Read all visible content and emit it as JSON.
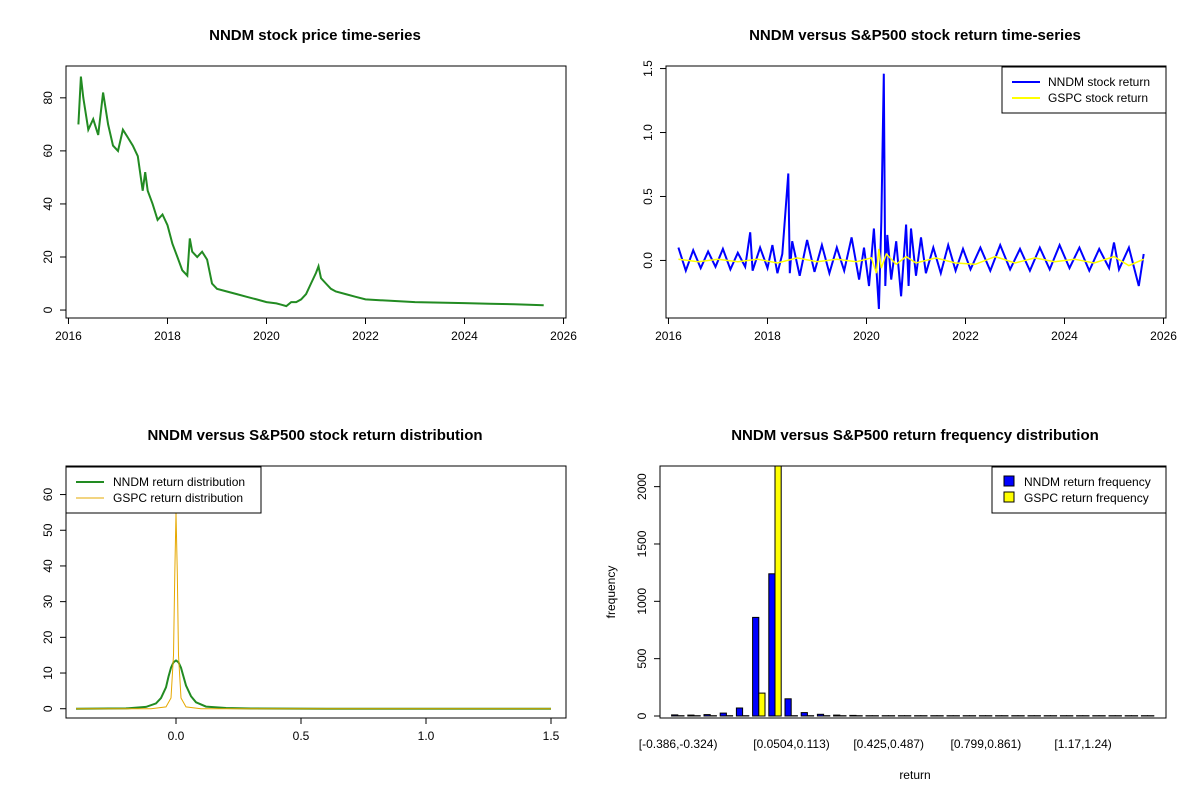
{
  "chart_data": [
    {
      "type": "line",
      "title": "NNDM stock price time-series",
      "xlabel": "",
      "ylabel": "",
      "xlim": [
        2016,
        2026
      ],
      "ylim": [
        0,
        90
      ],
      "xticks": [
        "2016",
        "2018",
        "2020",
        "2022",
        "2024",
        "2026"
      ],
      "yticks": [
        "0",
        "20",
        "40",
        "60",
        "80"
      ],
      "series": [
        {
          "name": "NNDM price",
          "color": "#228B22",
          "x": [
            2016.2,
            2016.25,
            2016.3,
            2016.4,
            2016.5,
            2016.6,
            2016.7,
            2016.8,
            2016.9,
            2017.0,
            2017.1,
            2017.2,
            2017.3,
            2017.4,
            2017.5,
            2017.55,
            2017.6,
            2017.7,
            2017.8,
            2017.9,
            2018.0,
            2018.1,
            2018.2,
            2018.3,
            2018.4,
            2018.45,
            2018.5,
            2018.6,
            2018.7,
            2018.8,
            2018.9,
            2019.0,
            2019.2,
            2019.4,
            2019.6,
            2019.8,
            2020.0,
            2020.2,
            2020.3,
            2020.4,
            2020.5,
            2020.6,
            2020.7,
            2020.8,
            2020.9,
            2021.0,
            2021.05,
            2021.1,
            2021.2,
            2021.3,
            2021.4,
            2021.6,
            2021.8,
            2022.0,
            2022.5,
            2023.0,
            2023.5,
            2024.0,
            2024.5,
            2025.0,
            2025.3,
            2025.6
          ],
          "y": [
            70,
            88,
            80,
            68,
            72,
            66,
            82,
            70,
            62,
            60,
            68,
            65,
            62,
            58,
            45,
            52,
            45,
            40,
            34,
            36,
            32,
            25,
            20,
            15,
            13,
            27,
            22,
            20,
            22,
            19,
            10,
            8,
            7,
            6,
            5,
            4,
            3,
            2.5,
            2,
            1.5,
            3,
            3,
            4,
            6,
            10,
            14,
            16.5,
            12,
            10,
            8,
            7,
            6,
            5,
            4,
            3.5,
            3,
            2.8,
            2.6,
            2.4,
            2.2,
            2.0,
            1.8
          ]
        }
      ]
    },
    {
      "type": "line",
      "title": "NNDM versus S&P500 stock return time-series",
      "xlabel": "",
      "ylabel": "",
      "xlim": [
        2016,
        2026
      ],
      "ylim": [
        -0.4,
        1.5
      ],
      "xticks": [
        "2016",
        "2018",
        "2020",
        "2022",
        "2024",
        "2026"
      ],
      "yticks": [
        "0.0",
        "0.5",
        "1.0",
        "1.5"
      ],
      "legend_position": "top-right",
      "series": [
        {
          "name": "NNDM stock return",
          "color": "#0000FF",
          "x": [
            2016.2,
            2016.35,
            2016.5,
            2016.65,
            2016.8,
            2016.95,
            2017.1,
            2017.25,
            2017.4,
            2017.55,
            2017.65,
            2017.7,
            2017.85,
            2018.0,
            2018.1,
            2018.2,
            2018.3,
            2018.42,
            2018.45,
            2018.5,
            2018.65,
            2018.8,
            2018.95,
            2019.1,
            2019.25,
            2019.4,
            2019.55,
            2019.7,
            2019.85,
            2019.95,
            2020.05,
            2020.15,
            2020.25,
            2020.3,
            2020.35,
            2020.38,
            2020.42,
            2020.5,
            2020.6,
            2020.7,
            2020.8,
            2020.85,
            2020.9,
            2021.0,
            2021.1,
            2021.2,
            2021.35,
            2021.5,
            2021.65,
            2021.8,
            2021.95,
            2022.1,
            2022.3,
            2022.5,
            2022.7,
            2022.9,
            2023.1,
            2023.3,
            2023.5,
            2023.7,
            2023.9,
            2024.1,
            2024.3,
            2024.5,
            2024.7,
            2024.9,
            2025.0,
            2025.1,
            2025.3,
            2025.5,
            2025.6
          ],
          "y": [
            0.1,
            -0.08,
            0.08,
            -0.06,
            0.07,
            -0.05,
            0.09,
            -0.07,
            0.06,
            -0.05,
            0.22,
            -0.08,
            0.1,
            -0.06,
            0.12,
            -0.1,
            0.05,
            0.68,
            -0.1,
            0.15,
            -0.12,
            0.16,
            -0.09,
            0.12,
            -0.1,
            0.1,
            -0.08,
            0.18,
            -0.15,
            0.1,
            -0.2,
            0.25,
            -0.38,
            0.3,
            1.46,
            -0.2,
            0.2,
            -0.15,
            0.15,
            -0.28,
            0.28,
            -0.2,
            0.25,
            -0.12,
            0.18,
            -0.1,
            0.1,
            -0.1,
            0.12,
            -0.08,
            0.09,
            -0.07,
            0.1,
            -0.08,
            0.12,
            -0.07,
            0.09,
            -0.08,
            0.1,
            -0.07,
            0.12,
            -0.06,
            0.1,
            -0.08,
            0.09,
            -0.06,
            0.14,
            -0.07,
            0.1,
            -0.2,
            0.05
          ]
        },
        {
          "name": "GSPC stock return",
          "color": "#FFFF00",
          "x": [
            2016.2,
            2016.6,
            2017.0,
            2017.4,
            2017.8,
            2018.2,
            2018.6,
            2019.0,
            2019.4,
            2019.8,
            2020.1,
            2020.2,
            2020.25,
            2020.3,
            2020.4,
            2020.6,
            2020.8,
            2021.0,
            2021.4,
            2021.8,
            2022.2,
            2022.6,
            2023.0,
            2023.4,
            2023.8,
            2024.2,
            2024.6,
            2025.0,
            2025.3,
            2025.6
          ],
          "y": [
            0.01,
            -0.01,
            0.01,
            -0.01,
            0.01,
            -0.02,
            0.02,
            -0.01,
            0.01,
            -0.01,
            0.02,
            -0.1,
            0.09,
            -0.06,
            0.05,
            -0.03,
            0.03,
            -0.02,
            0.02,
            -0.02,
            -0.03,
            0.03,
            -0.02,
            0.02,
            -0.01,
            0.01,
            -0.02,
            0.03,
            -0.04,
            0.01
          ]
        }
      ]
    },
    {
      "type": "line",
      "title": "NNDM versus S&P500 stock return distribution",
      "xlabel": "",
      "ylabel": "",
      "xlim": [
        -0.4,
        1.55
      ],
      "ylim": [
        0,
        68
      ],
      "xticks": [
        "0.0",
        "0.5",
        "1.0",
        "1.5"
      ],
      "yticks": [
        "0",
        "10",
        "20",
        "30",
        "40",
        "50",
        "60"
      ],
      "legend_position": "top-left",
      "series": [
        {
          "name": "NNDM return distribution",
          "color": "#228B22",
          "x": [
            -0.4,
            -0.2,
            -0.12,
            -0.08,
            -0.06,
            -0.04,
            -0.03,
            -0.02,
            -0.01,
            0.0,
            0.01,
            0.02,
            0.03,
            0.04,
            0.06,
            0.08,
            0.12,
            0.2,
            0.3,
            0.6,
            1.0,
            1.3,
            1.5
          ],
          "y": [
            0,
            0.1,
            0.5,
            1.5,
            3,
            6,
            9,
            11.5,
            13,
            13.5,
            13,
            11.5,
            9,
            6.5,
            3.5,
            1.8,
            0.6,
            0.2,
            0.05,
            0,
            0,
            0,
            0
          ]
        },
        {
          "name": "GSPC return distribution",
          "color": "#E6A800",
          "x": [
            -0.4,
            -0.1,
            -0.04,
            -0.02,
            -0.01,
            -0.005,
            0.0,
            0.005,
            0.01,
            0.02,
            0.04,
            0.1,
            0.5,
            1.0,
            1.5
          ],
          "y": [
            0,
            0,
            0.5,
            3,
            15,
            38,
            55,
            38,
            15,
            3,
            0.5,
            0,
            0,
            0,
            0
          ]
        }
      ]
    },
    {
      "type": "bar",
      "title": "NNDM versus S&P500 return frequency distribution",
      "xlabel": "return",
      "ylabel": "frequency",
      "ylim": [
        0,
        2180
      ],
      "yticks": [
        "0",
        "500",
        "1000",
        "1500",
        "2000"
      ],
      "xtick_labels": [
        "[-0.386,-0.324)",
        "[0.0504,0.113)",
        "[0.425,0.487)",
        "[0.799,0.861)",
        "[1.17,1.24)"
      ],
      "xtick_label_positions": [
        0,
        7,
        13,
        19,
        25
      ],
      "bin_count": 30,
      "legend_position": "top-right",
      "series": [
        {
          "name": "NNDM return frequency",
          "color": "#0000FF",
          "values": [
            10,
            8,
            12,
            25,
            70,
            860,
            1240,
            150,
            30,
            15,
            8,
            5,
            3,
            2,
            2,
            2,
            1,
            1,
            1,
            1,
            1,
            1,
            1,
            1,
            1,
            1,
            1,
            1,
            1,
            1
          ]
        },
        {
          "name": "GSPC return frequency",
          "color": "#FFFF00",
          "values": [
            0,
            0,
            0,
            0,
            0,
            200,
            2180,
            0,
            0,
            0,
            0,
            0,
            0,
            0,
            0,
            0,
            0,
            0,
            0,
            0,
            0,
            0,
            0,
            0,
            0,
            0,
            0,
            0,
            0,
            0
          ]
        }
      ]
    }
  ]
}
